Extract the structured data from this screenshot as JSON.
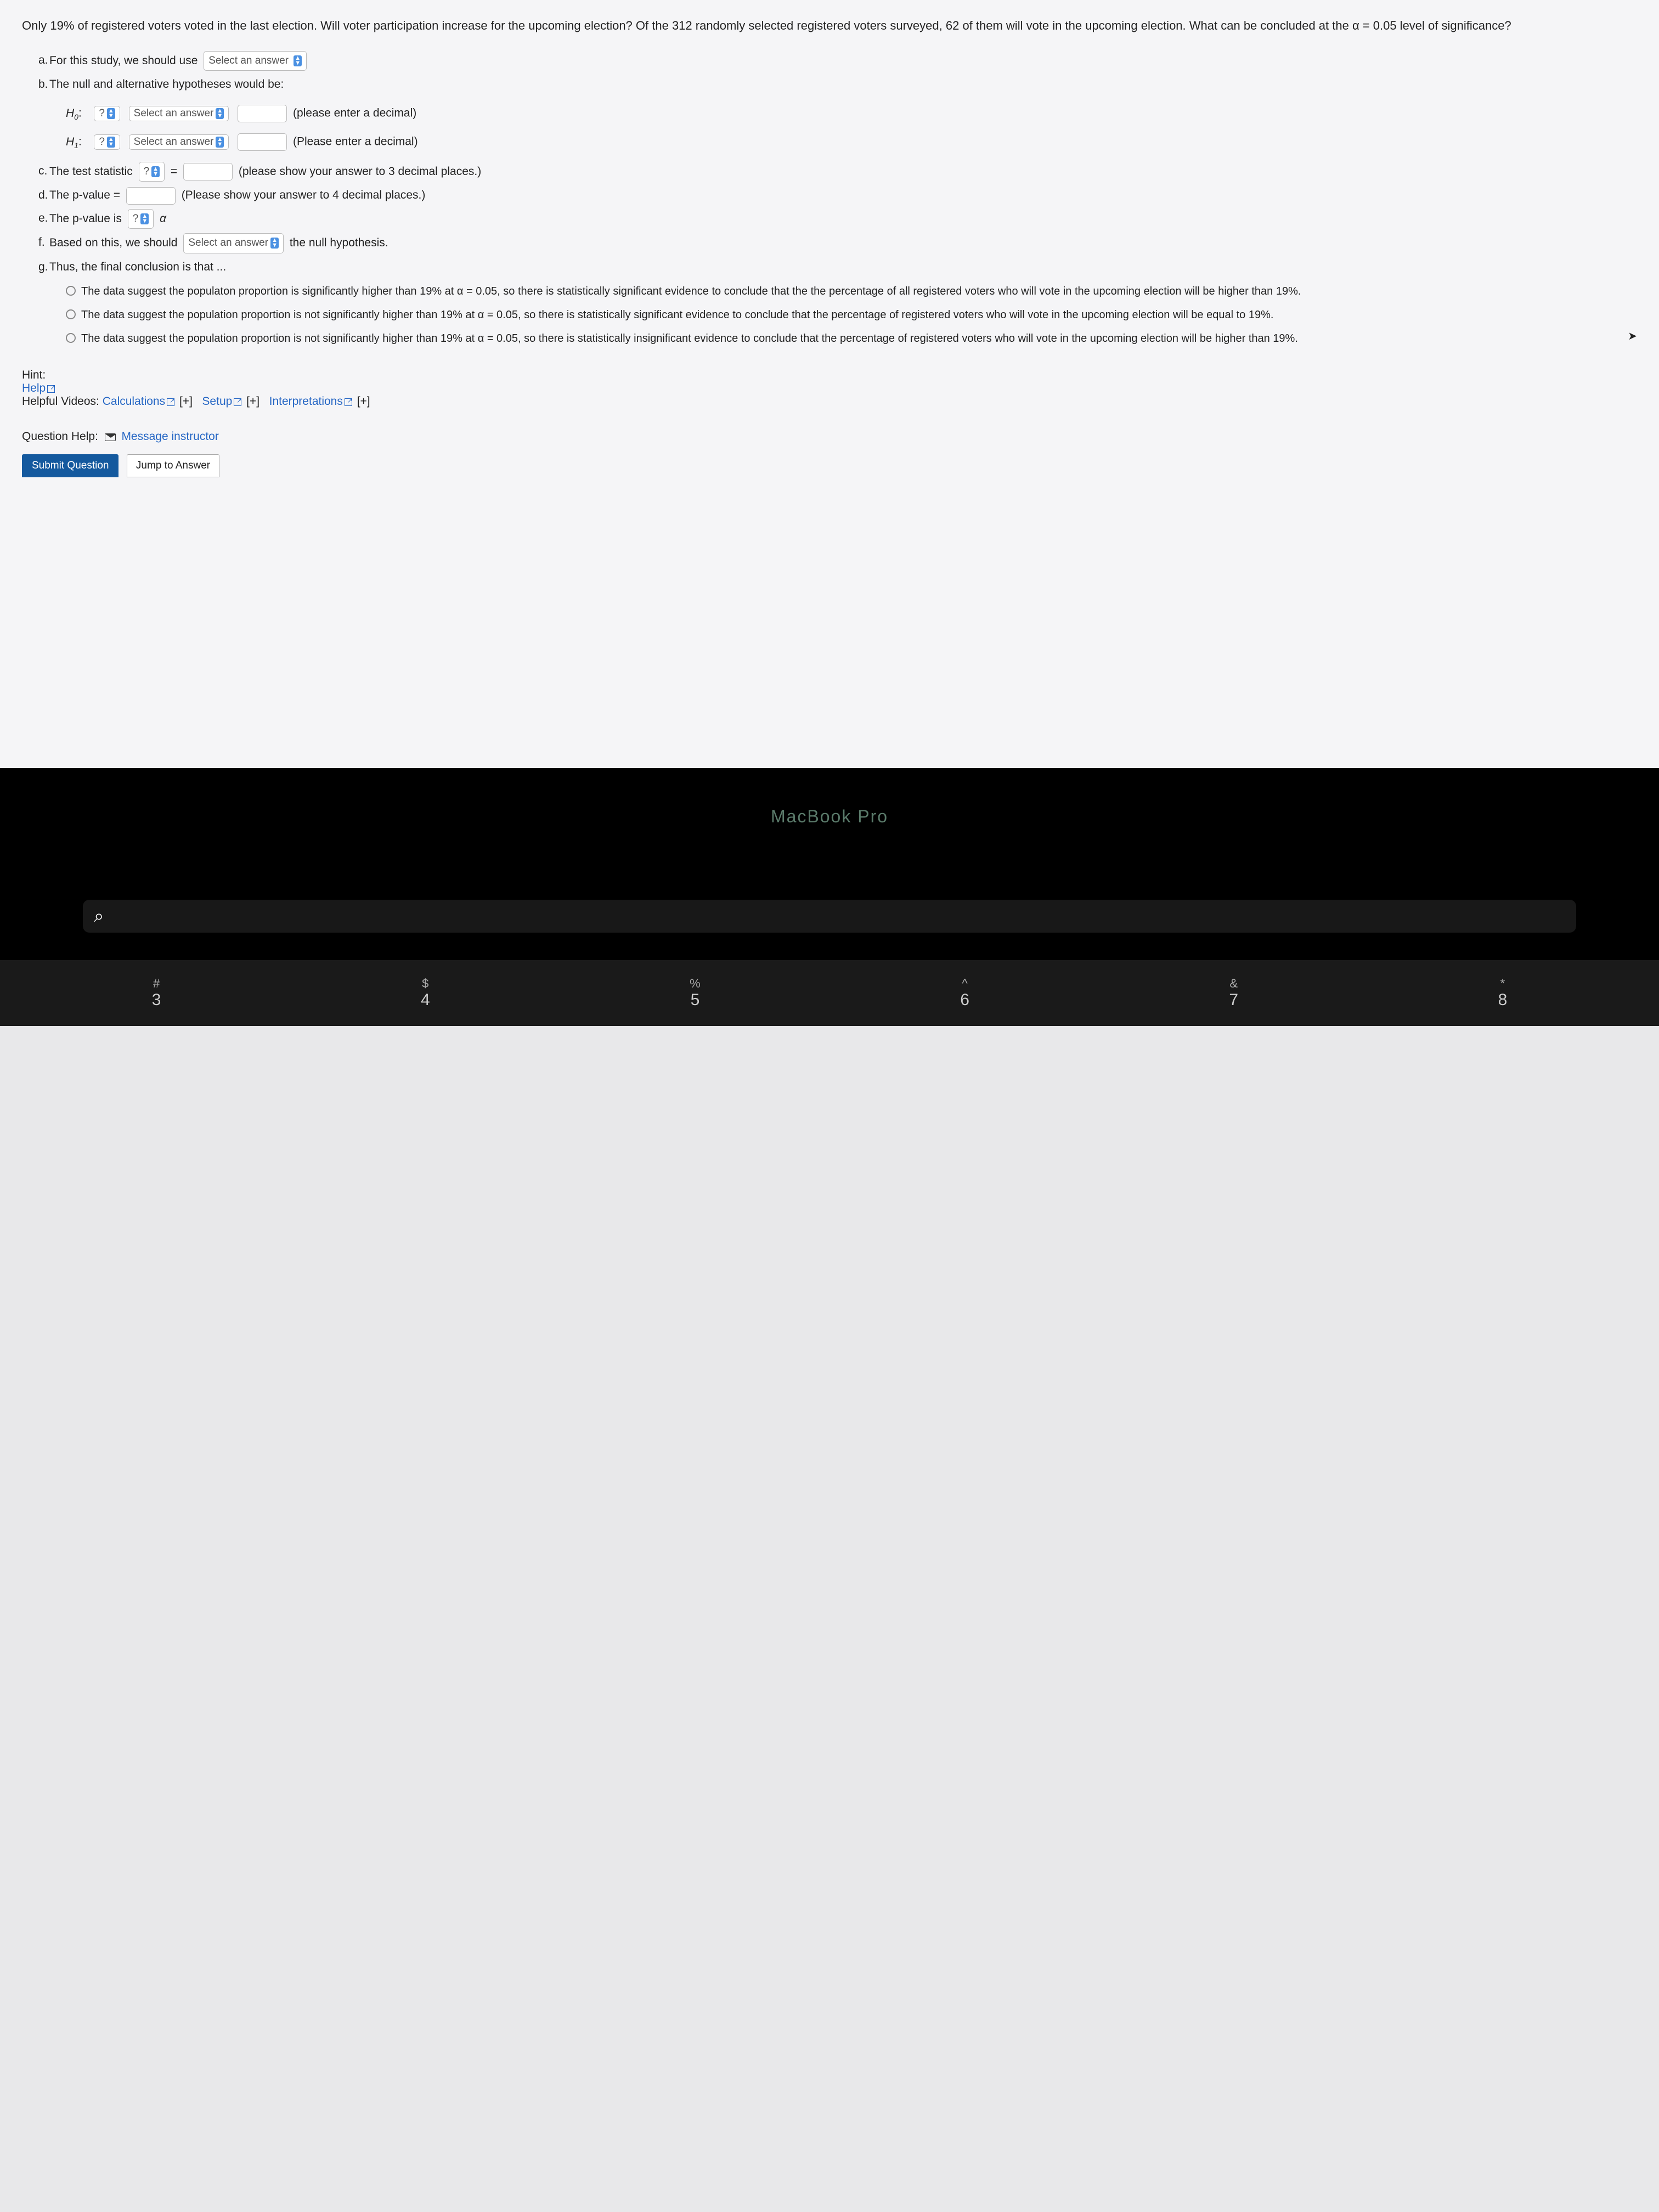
{
  "intro": "Only 19% of registered voters voted in the last election. Will voter participation increase for the upcoming election? Of the 312 randomly selected registered voters surveyed, 62 of them will vote in the upcoming election. What can be concluded at the α = 0.05 level of significance?",
  "items": {
    "a": {
      "marker": "a.",
      "text_before": "For this study, we should use",
      "select": "Select an answer"
    },
    "b": {
      "marker": "b.",
      "text": "The null and alternative hypotheses would be:"
    },
    "h0": {
      "label": "H",
      "sub": "0",
      "colon": ":",
      "q": "?",
      "select": "Select an answer",
      "hint": "(please enter a decimal)"
    },
    "h1": {
      "label": "H",
      "sub": "1",
      "colon": ":",
      "q": "?",
      "select": "Select an answer",
      "hint": "(Please enter a decimal)"
    },
    "c": {
      "marker": "c.",
      "text": "The test statistic",
      "q": "?",
      "eq": "=",
      "hint": "(please show your answer to 3 decimal places.)"
    },
    "d": {
      "marker": "d.",
      "text": "The p-value =",
      "hint": "(Please show your answer to 4 decimal places.)"
    },
    "e": {
      "marker": "e.",
      "text": "The p-value is",
      "q": "?",
      "alpha": "α"
    },
    "f": {
      "marker": "f.",
      "text_before": "Based on this, we should",
      "select": "Select an answer",
      "text_after": "the null hypothesis."
    },
    "g": {
      "marker": "g.",
      "text": "Thus, the final conclusion is that ..."
    }
  },
  "conclusions": [
    "The data suggest the populaton proportion is significantly higher than 19% at α = 0.05, so there is statistically significant evidence to conclude that the the percentage of all registered voters who will vote in the upcoming election will be higher than 19%.",
    "The data suggest the population proportion is not significantly higher than 19% at α = 0.05, so there is statistically significant evidence to conclude that the percentage of registered voters who will vote in the upcoming election will be equal to 19%.",
    "The data suggest the population proportion is not significantly higher than 19% at α = 0.05, so there is statistically insignificant evidence to conclude that the percentage of registered voters who will vote in the upcoming election will be higher than 19%."
  ],
  "hint": {
    "label": "Hint:",
    "help": "Help",
    "videos_label": "Helpful Videos:",
    "calc": "Calculations",
    "setup": "Setup",
    "interp": "Interpretations",
    "plus": "[+]"
  },
  "qhelp": {
    "label": "Question Help:",
    "msg": "Message instructor"
  },
  "buttons": {
    "submit": "Submit Question",
    "jump": "Jump to Answer"
  },
  "device": {
    "label": "MacBook Pro"
  },
  "keys": [
    {
      "sym": "#",
      "num": "3"
    },
    {
      "sym": "$",
      "num": "4"
    },
    {
      "sym": "%",
      "num": "5"
    },
    {
      "sym": "^",
      "num": "6"
    },
    {
      "sym": "&",
      "num": "7"
    },
    {
      "sym": "*",
      "num": "8"
    }
  ],
  "colors": {
    "page_bg": "#f5f5f7",
    "submit_bg": "#14599e",
    "link": "#2566c4",
    "blue_arrow": "#4a90e2",
    "black": "#000000"
  }
}
